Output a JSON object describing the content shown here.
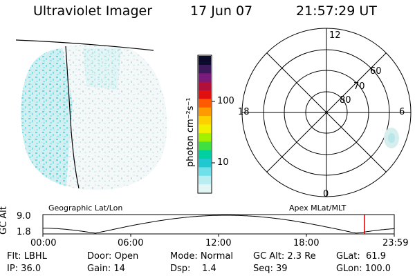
{
  "header": {
    "title": "Ultraviolet Imager",
    "date": "17 Jun 07",
    "time": "21:57:29 UT"
  },
  "colorbar": {
    "unit_label": "photon cm⁻²s⁻¹",
    "tick_labels": [
      "100",
      "10"
    ],
    "colors": [
      "#0a0a2a",
      "#3a1a5a",
      "#7a1a7a",
      "#b0103a",
      "#e01010",
      "#ff5a00",
      "#ff9a00",
      "#ffd000",
      "#f0f000",
      "#a0f000",
      "#40e040",
      "#00d0a0",
      "#20c8d0",
      "#70e0e8",
      "#b8eef2",
      "#e2f6f6"
    ]
  },
  "polar": {
    "mlt_labels": {
      "top": "12",
      "left": "18",
      "right": "6",
      "bottom": "0"
    },
    "lat_labels": [
      "80",
      "70",
      "60"
    ]
  },
  "map_labels": {
    "left": "Geographic Lat/Lon",
    "right": "Apex MLat/MLT"
  },
  "altitude_plot": {
    "ylabel": "GC Alt",
    "ytick_top": "9.0",
    "ytick_bottom": "1.8",
    "xticks": [
      "00:00",
      "06:00",
      "12:00",
      "18:00",
      "23:59"
    ],
    "marker_color": "#cc0000",
    "marker_hour": 21.96
  },
  "info": {
    "flt": "Flt: LBHL",
    "ip": "IP: 36.0",
    "door": "Door: Open",
    "gain": "Gain: 14",
    "mode": "Mode: Normal",
    "dsp": "Dsp:    1.4",
    "gcalt": "GC Alt: 2.3 Re",
    "seq": "Seq: 39",
    "glat": "GLat:  61.9",
    "glon": "GLon: 100.0"
  }
}
